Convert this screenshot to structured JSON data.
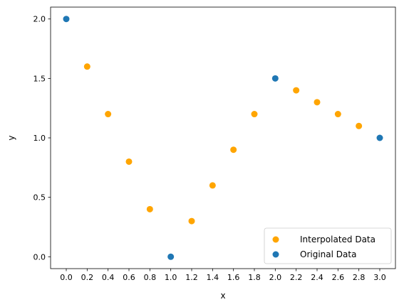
{
  "chart_data": {
    "type": "scatter",
    "title": "",
    "xlabel": "x",
    "ylabel": "y",
    "xlim": [
      -0.15,
      3.15
    ],
    "ylim": [
      -0.1,
      2.1
    ],
    "xticks": [
      0.0,
      0.2,
      0.4,
      0.6,
      0.8,
      1.0,
      1.2,
      1.4,
      1.6,
      1.8,
      2.0,
      2.2,
      2.4,
      2.6,
      2.8,
      3.0
    ],
    "xtick_labels": [
      "0.0",
      "0.2",
      "0.4",
      "0.6",
      "0.8",
      "1.0",
      "1.2",
      "1.4",
      "1.6",
      "1.8",
      "2.0",
      "2.2",
      "2.4",
      "2.6",
      "2.8",
      "3.0"
    ],
    "yticks": [
      0.0,
      0.5,
      1.0,
      1.5,
      2.0
    ],
    "ytick_labels": [
      "0.0",
      "0.5",
      "1.0",
      "1.5",
      "2.0"
    ],
    "grid": false,
    "legend_position": "bottom-right",
    "series": [
      {
        "name": "Interpolated Data",
        "color": "#ffa500",
        "x": [
          0.2,
          0.4,
          0.6,
          0.8,
          1.2,
          1.4,
          1.6,
          1.8,
          2.2,
          2.4,
          2.6,
          2.8
        ],
        "y": [
          1.6,
          1.2,
          0.8,
          0.4,
          0.3,
          0.6,
          0.9,
          1.2,
          1.4,
          1.3,
          1.2,
          1.1
        ]
      },
      {
        "name": "Original Data",
        "color": "#1f77b4",
        "x": [
          0.0,
          1.0,
          2.0,
          3.0
        ],
        "y": [
          2.0,
          0.0,
          1.5,
          1.0
        ]
      }
    ]
  }
}
